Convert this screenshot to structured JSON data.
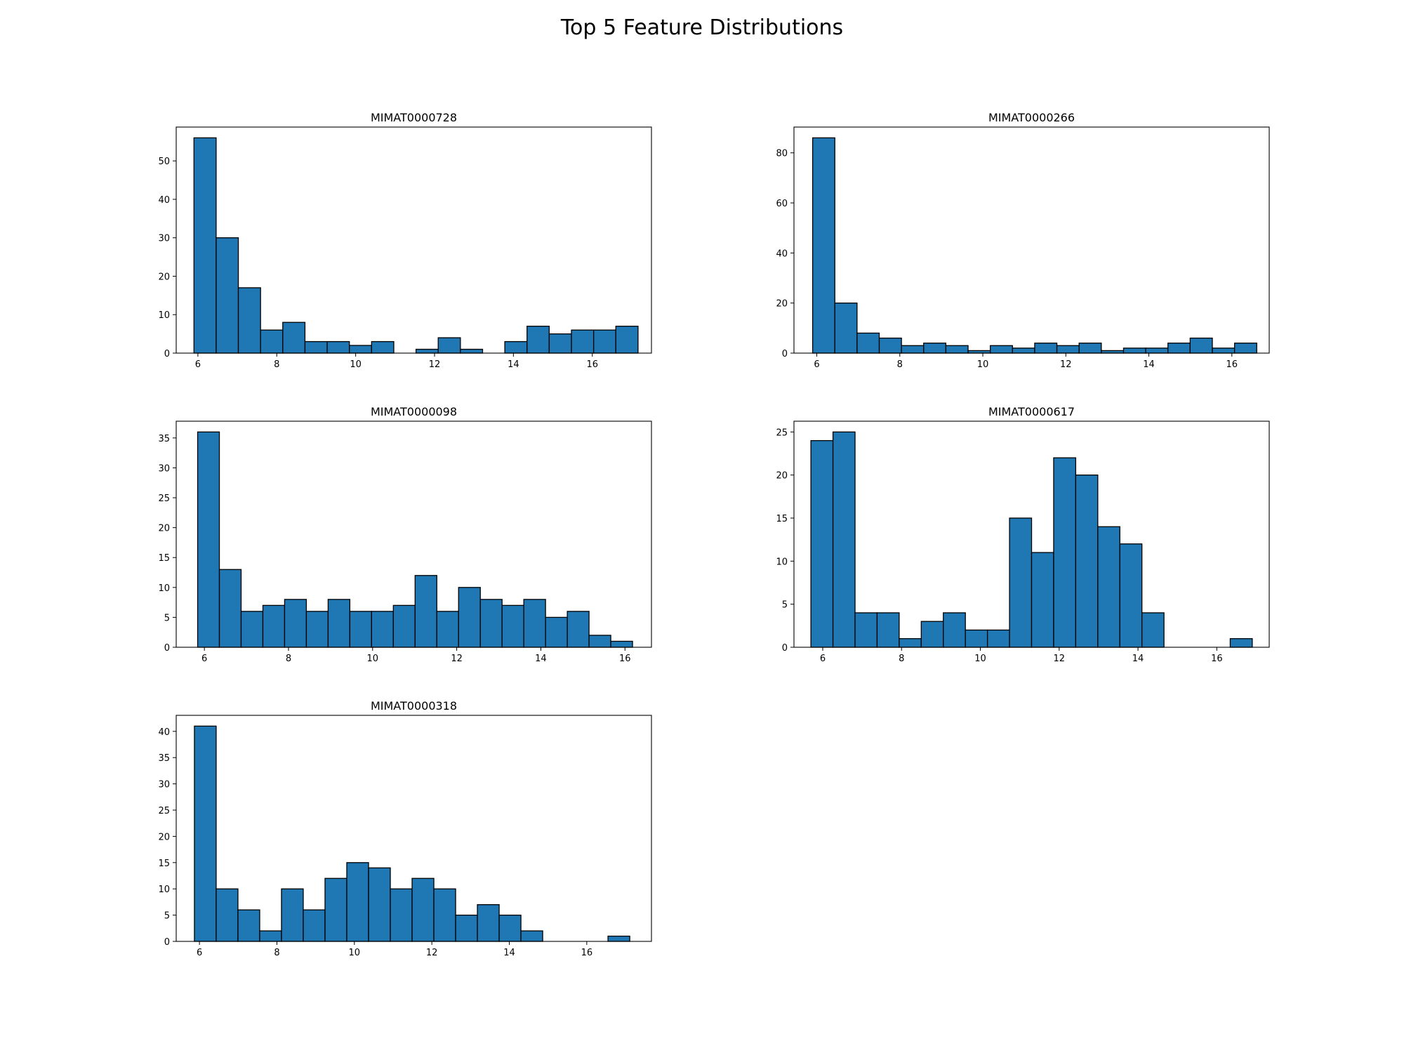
{
  "figure": {
    "title": "Top 5 Feature Distributions"
  },
  "style": {
    "bar_color": "#1f77b4",
    "edge_color": "#000000"
  },
  "chart_data": [
    {
      "type": "bar",
      "title": "MIMAT0000728",
      "xlim": [
        5.45,
        17.5
      ],
      "ylim": [
        0,
        58.8
      ],
      "xticks": [
        6,
        8,
        10,
        12,
        14,
        16
      ],
      "yticks": [
        0,
        10,
        20,
        30,
        40,
        50
      ],
      "bin_start": 5.9,
      "bin_width": 0.563,
      "values": [
        56,
        30,
        17,
        6,
        8,
        3,
        3,
        2,
        3,
        0,
        1,
        4,
        1,
        0,
        3,
        7,
        5,
        6,
        6,
        7
      ]
    },
    {
      "type": "bar",
      "title": "MIMAT0000266",
      "xlim": [
        5.45,
        16.9
      ],
      "ylim": [
        0,
        90.3
      ],
      "xticks": [
        6,
        8,
        10,
        12,
        14,
        16
      ],
      "yticks": [
        0,
        20,
        40,
        60,
        80
      ],
      "bin_start": 5.9,
      "bin_width": 0.535,
      "values": [
        86,
        20,
        8,
        6,
        3,
        4,
        3,
        1,
        3,
        2,
        4,
        3,
        4,
        1,
        2,
        2,
        4,
        6,
        2,
        4
      ]
    },
    {
      "type": "bar",
      "title": "MIMAT0000098",
      "xlim": [
        5.33,
        16.63
      ],
      "ylim": [
        0,
        37.8
      ],
      "xticks": [
        6,
        8,
        10,
        12,
        14,
        16
      ],
      "yticks": [
        0,
        5,
        10,
        15,
        20,
        25,
        30,
        35
      ],
      "bin_start": 5.84,
      "bin_width": 0.517,
      "values": [
        36,
        13,
        6,
        7,
        8,
        6,
        8,
        6,
        6,
        7,
        12,
        6,
        10,
        8,
        7,
        8,
        5,
        6,
        2,
        1
      ]
    },
    {
      "type": "bar",
      "title": "MIMAT0000617",
      "xlim": [
        5.27,
        17.33
      ],
      "ylim": [
        0,
        26.25
      ],
      "xticks": [
        6,
        8,
        10,
        12,
        14,
        16
      ],
      "yticks": [
        0,
        5,
        10,
        15,
        20,
        25
      ],
      "bin_start": 5.7,
      "bin_width": 0.56,
      "values": [
        24,
        25,
        4,
        4,
        1,
        3,
        4,
        2,
        2,
        15,
        11,
        22,
        20,
        14,
        12,
        4,
        0,
        0,
        0,
        1
      ]
    },
    {
      "type": "bar",
      "title": "MIMAT0000318",
      "xlim": [
        5.4,
        17.67
      ],
      "ylim": [
        0,
        43.05
      ],
      "xticks": [
        6,
        8,
        10,
        12,
        14,
        16
      ],
      "yticks": [
        0,
        5,
        10,
        15,
        20,
        25,
        30,
        35,
        40
      ],
      "bin_start": 5.87,
      "bin_width": 0.562,
      "values": [
        41,
        10,
        6,
        2,
        10,
        6,
        12,
        15,
        14,
        10,
        12,
        10,
        5,
        7,
        5,
        2,
        0,
        0,
        0,
        1
      ]
    }
  ]
}
